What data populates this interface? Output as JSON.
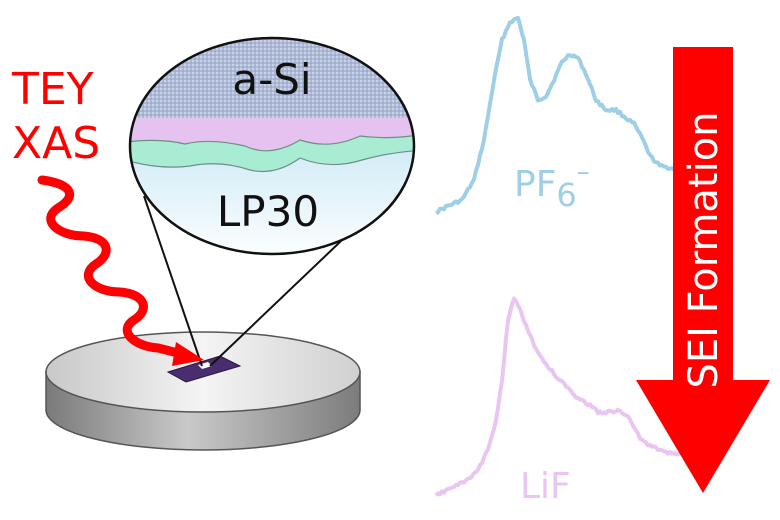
{
  "technique": {
    "line1": "TEY",
    "line2": "XAS"
  },
  "zoom": {
    "top_label": "a-Si",
    "bottom_label": "LP30"
  },
  "spectra": [
    {
      "label": "PF",
      "subscript": "6",
      "superscript": "–",
      "color": "#9fcfe6"
    },
    {
      "label": "LiF",
      "color": "#e8c6f1"
    }
  ],
  "arrow": {
    "label": "SEI Formation",
    "color": "#ff0000"
  },
  "colors": {
    "beam": "#ff0000",
    "sample": "#4a2d6e",
    "disc_top": "#dcdcdc",
    "disc_side": "#9a9a9a",
    "layer_asi": "#a9b6d4",
    "layer_sei": "#e5c2f0",
    "layer_green": "#a8ecd3",
    "electrolyte": "#a8d7ec"
  }
}
